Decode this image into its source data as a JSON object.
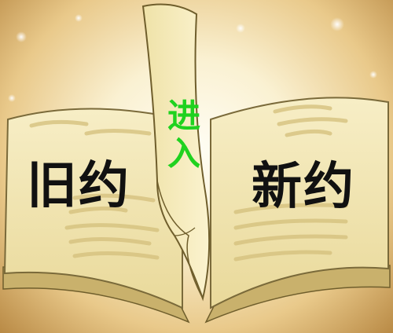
{
  "book": {
    "left_page_label": "旧约",
    "right_page_label": "新约",
    "center_button_label": [
      "进",
      "入"
    ]
  },
  "colors": {
    "background_center": "#fffdf4",
    "background_edge": "#b98a45",
    "page_fill": "#f3e7b4",
    "page_stroke": "#7a6a3a",
    "enter_text": "#1fd21f",
    "label_text": "#111111"
  }
}
